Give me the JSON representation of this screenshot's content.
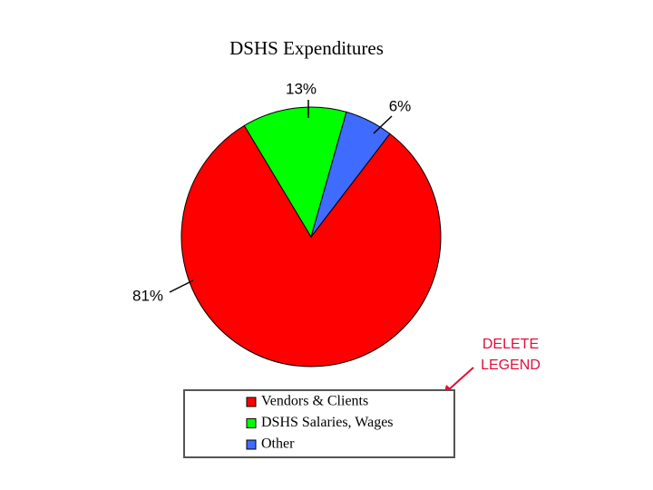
{
  "chart_data": {
    "type": "pie",
    "title": "DSHS Expenditures",
    "categories": [
      "Vendors & Clients",
      "DSHS Salaries, Wages",
      "Other"
    ],
    "values": [
      81,
      13,
      6
    ],
    "value_labels": [
      "81%",
      "13%",
      "6%"
    ],
    "colors": [
      "#ff0000",
      "#00ff00",
      "#3f6bff"
    ],
    "legend": "bottom",
    "annotation": [
      "DELETE",
      "LEGEND"
    ]
  }
}
